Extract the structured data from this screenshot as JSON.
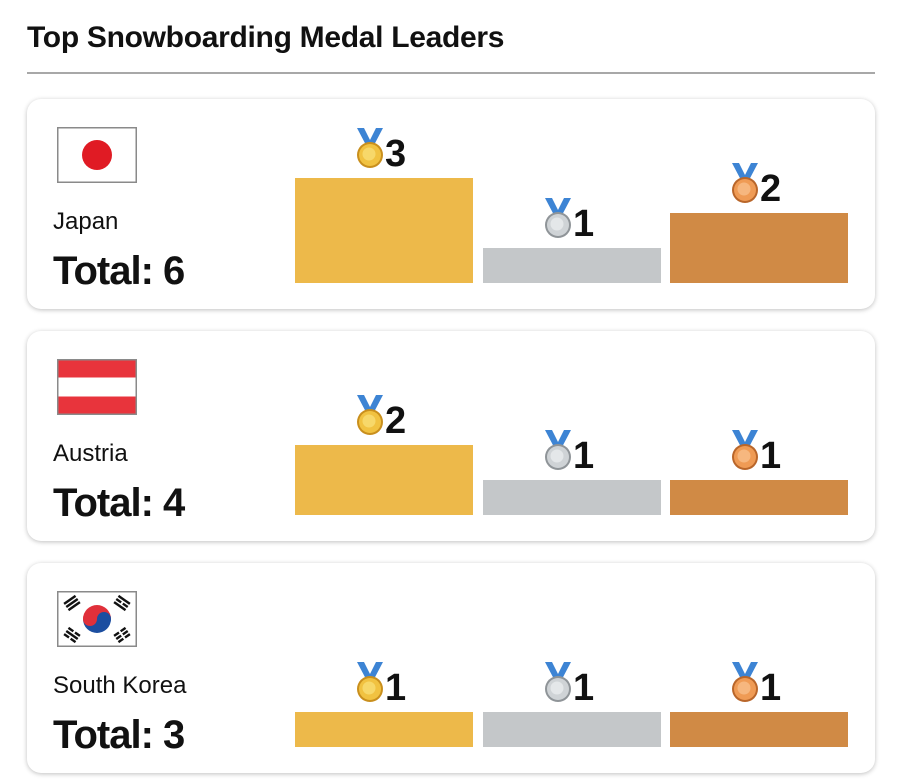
{
  "title": "Top Snowboarding Medal Leaders",
  "colors": {
    "gold": "#edb94a",
    "silver": "#c4c7c9",
    "bronze": "#d08a45",
    "ribbon": "#3d84d4"
  },
  "medal_icons": [
    "gold-medal-icon",
    "silver-medal-icon",
    "bronze-medal-icon"
  ],
  "chart_data": [
    {
      "type": "bar",
      "country": "Japan",
      "total_label": "Total: 6",
      "flag_icon": "japan-flag-icon",
      "categories": [
        "gold",
        "silver",
        "bronze"
      ],
      "values": [
        3,
        1,
        2
      ],
      "value_labels": [
        "3",
        "1",
        "2"
      ]
    },
    {
      "type": "bar",
      "country": "Austria",
      "total_label": "Total: 4",
      "flag_icon": "austria-flag-icon",
      "categories": [
        "gold",
        "silver",
        "bronze"
      ],
      "values": [
        2,
        1,
        1
      ],
      "value_labels": [
        "2",
        "1",
        "1"
      ]
    },
    {
      "type": "bar",
      "country": "South Korea",
      "total_label": "Total: 3",
      "flag_icon": "south-korea-flag-icon",
      "categories": [
        "gold",
        "silver",
        "bronze"
      ],
      "values": [
        1,
        1,
        1
      ],
      "value_labels": [
        "1",
        "1",
        "1"
      ]
    }
  ]
}
